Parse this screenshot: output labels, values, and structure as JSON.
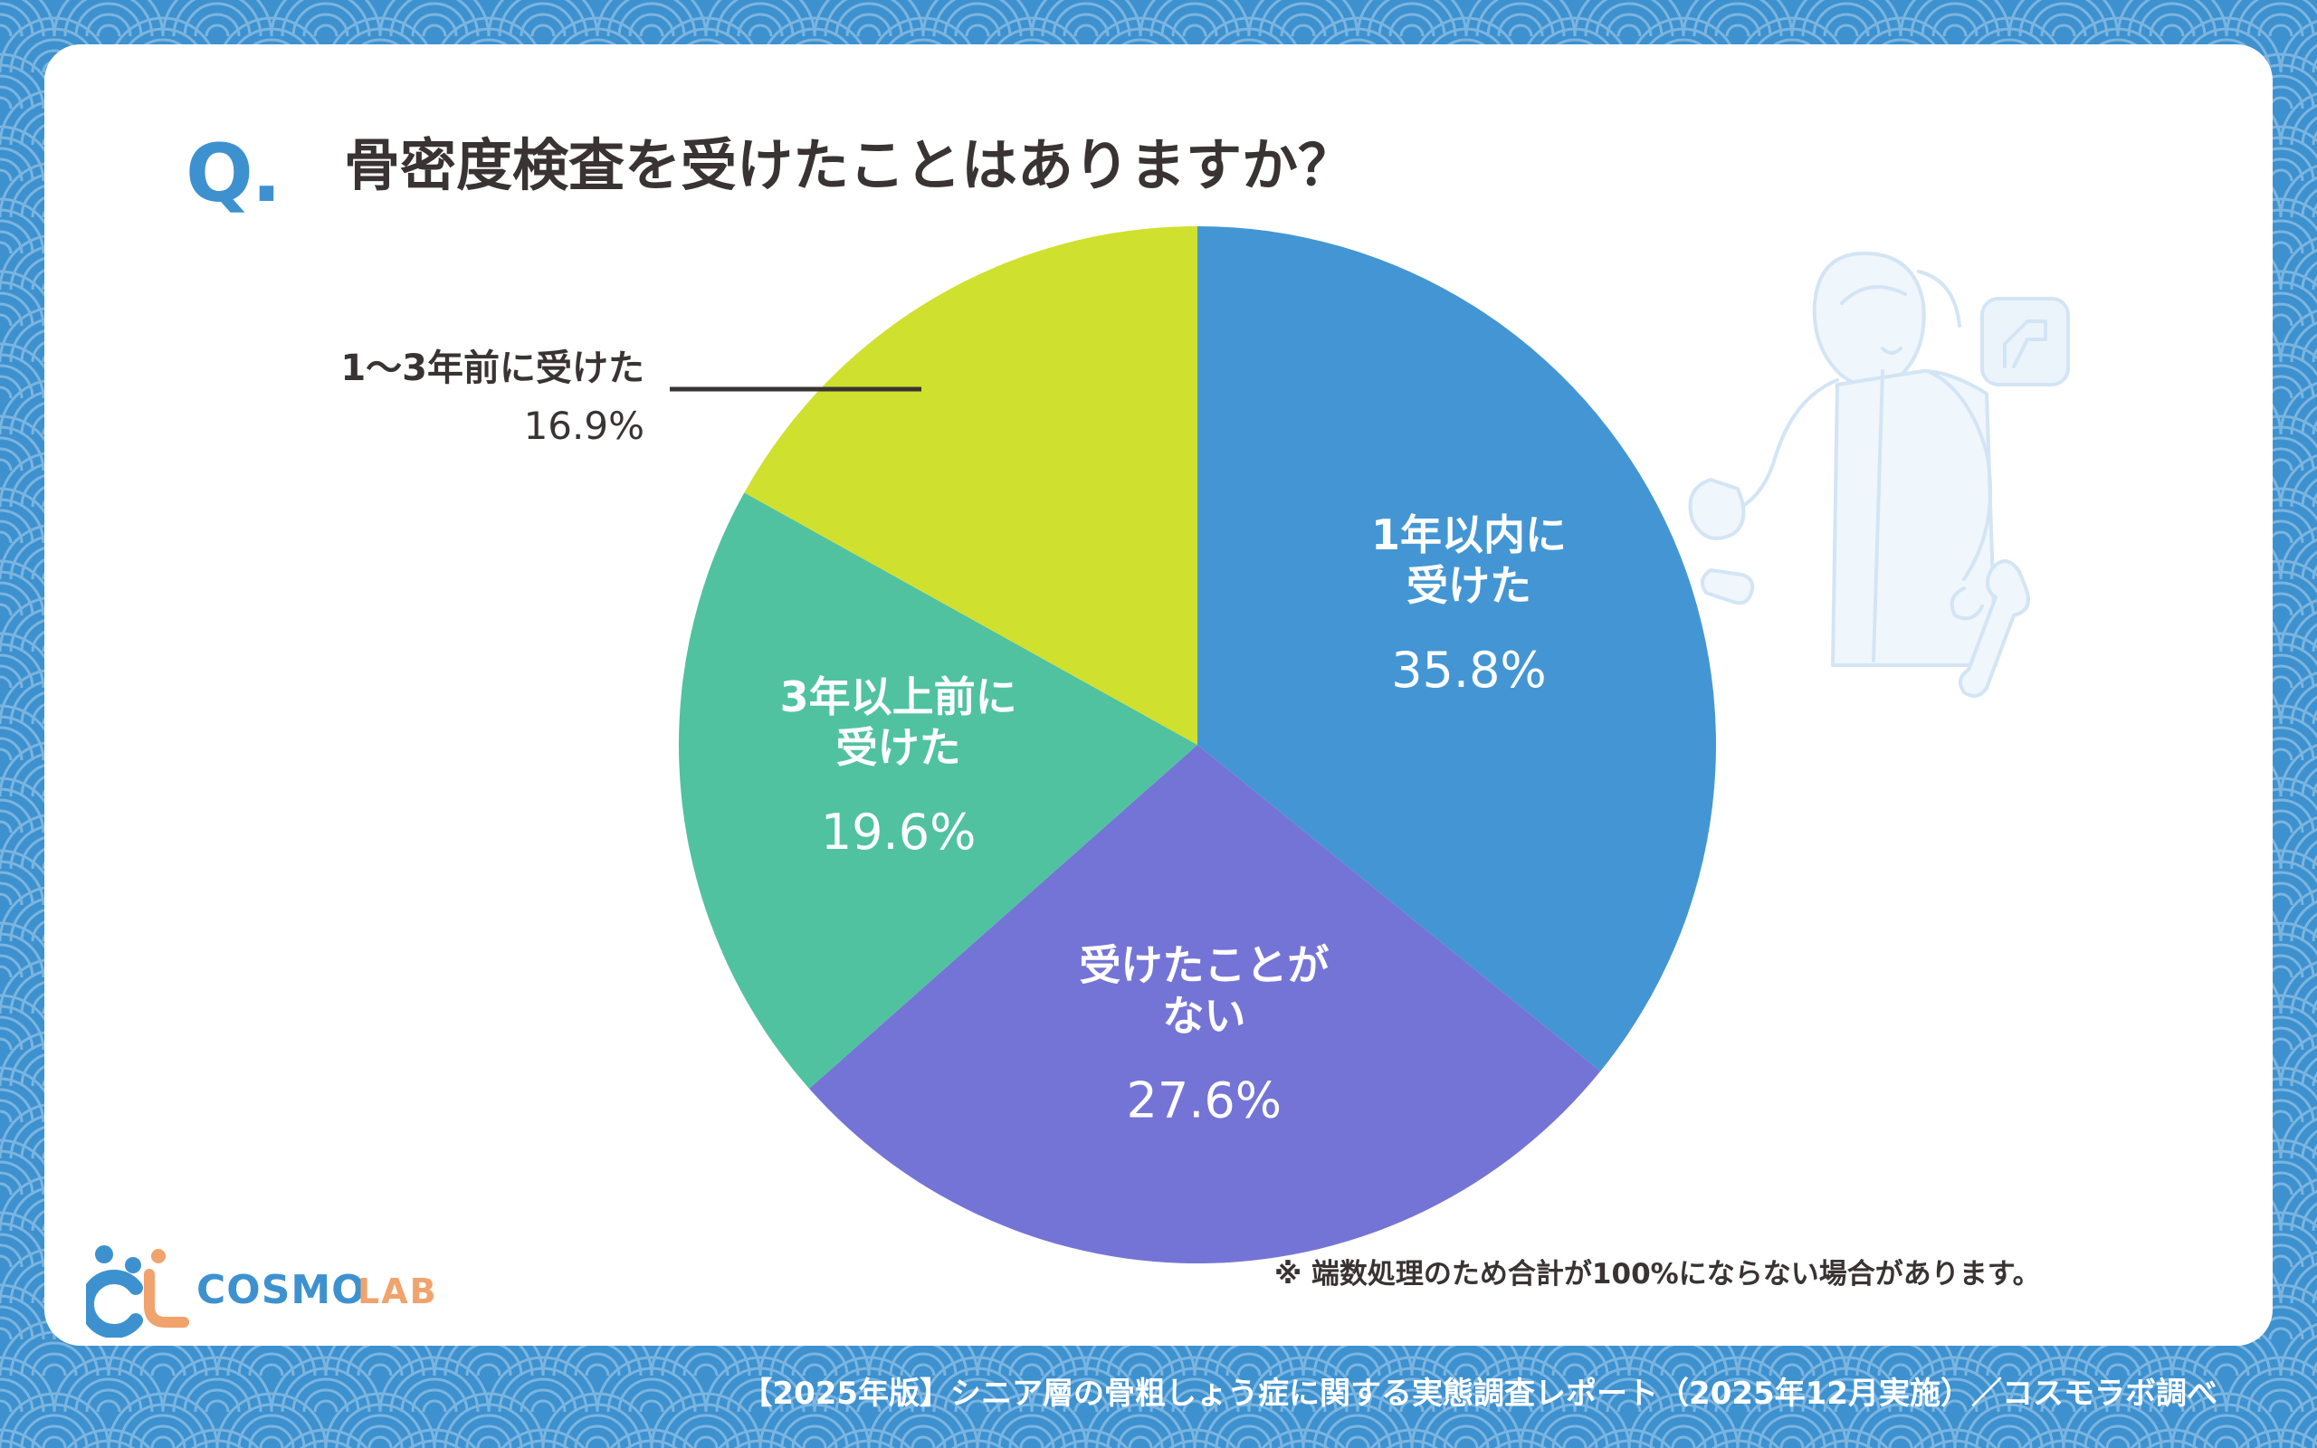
{
  "header": {
    "q_mark": "Q.",
    "question": "骨密度検査を受けたことはありますか？"
  },
  "chart_data": {
    "type": "pie",
    "title": "骨密度検査を受けたことはありますか？",
    "start": "top",
    "direction": "clockwise",
    "slices": [
      {
        "label": "1年以内に受けた",
        "lines": [
          "1年以内に",
          "受けた"
        ],
        "value": 35.8,
        "value_label": "35.8%",
        "color": "#4396d3",
        "label_position": "inside"
      },
      {
        "label": "受けたことがない",
        "lines": [
          "受けたことが",
          "ない"
        ],
        "value": 27.6,
        "value_label": "27.6%",
        "color": "#7474d6",
        "label_position": "inside"
      },
      {
        "label": "3年以上前に受けた",
        "lines": [
          "3年以上前に",
          "受けた"
        ],
        "value": 19.6,
        "value_label": "19.6%",
        "color": "#50c2a0",
        "label_position": "inside"
      },
      {
        "label": "1〜3年前に受けた",
        "lines": [
          "1〜3年前に受けた"
        ],
        "value": 16.9,
        "value_label": "16.9%",
        "color": "#cfe02e",
        "label_position": "outside-left"
      }
    ],
    "label_color_inside": "#ffffff",
    "label_color_outside": "#3a3333"
  },
  "note": "※ 端数処理のため合計が100%にならない場合があります。",
  "logo": {
    "main": "COSMO",
    "sub": "LAB"
  },
  "footer": "【2025年版】シニア層の骨粗しょう症に関する実態調査レポート（2025年12月実施）／コスモラボ調べ",
  "colors": {
    "background": "#3e91cf",
    "wave_line": "#8fc1e6",
    "card": "#ffffff",
    "accent": "#3e91cf",
    "text": "#3a3333"
  }
}
